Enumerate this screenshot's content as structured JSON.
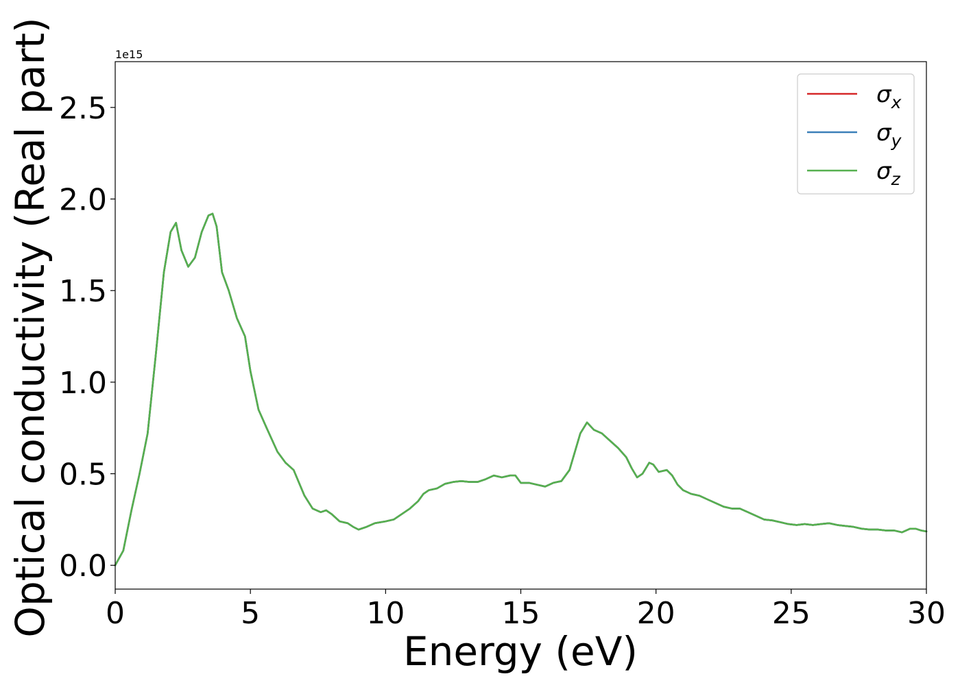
{
  "chart_data": {
    "type": "line",
    "title": "",
    "xlabel": "Energy (eV)",
    "ylabel": "Optical conductivity (Real part)",
    "y_offset_label": "1e15",
    "xlim": [
      0,
      30
    ],
    "ylim": [
      -0.13,
      2.75
    ],
    "xticks": [
      0,
      5,
      10,
      15,
      20,
      25,
      30
    ],
    "yticks": [
      0.0,
      0.5,
      1.0,
      1.5,
      2.0,
      2.5
    ],
    "xtick_labels": [
      "0",
      "5",
      "10",
      "15",
      "20",
      "25",
      "30"
    ],
    "ytick_labels": [
      "0.0",
      "0.5",
      "1.0",
      "1.5",
      "2.0",
      "2.5"
    ],
    "grid": false,
    "legend_position": "top-right",
    "legend": [
      {
        "symbol": "σ",
        "sub": "x",
        "color": "#d62728"
      },
      {
        "symbol": "σ",
        "sub": "y",
        "color": "#3a7fb8"
      },
      {
        "symbol": "σ",
        "sub": "z",
        "color": "#56b04f"
      }
    ],
    "x": [
      0,
      0.3,
      0.6,
      0.9,
      1.2,
      1.5,
      1.8,
      2.05,
      2.25,
      2.45,
      2.7,
      2.95,
      3.2,
      3.45,
      3.6,
      3.75,
      3.95,
      4.2,
      4.5,
      4.8,
      5.0,
      5.3,
      5.6,
      6.0,
      6.3,
      6.6,
      6.8,
      7.0,
      7.3,
      7.6,
      7.8,
      8.0,
      8.3,
      8.6,
      8.8,
      9.0,
      9.3,
      9.6,
      10.0,
      10.3,
      10.6,
      10.9,
      11.2,
      11.4,
      11.6,
      11.9,
      12.2,
      12.5,
      12.8,
      13.1,
      13.4,
      13.7,
      14.0,
      14.3,
      14.6,
      14.8,
      15.0,
      15.3,
      15.6,
      15.9,
      16.2,
      16.5,
      16.8,
      17.0,
      17.2,
      17.45,
      17.7,
      18.0,
      18.3,
      18.6,
      18.9,
      19.1,
      19.3,
      19.5,
      19.75,
      19.9,
      20.1,
      20.4,
      20.6,
      20.8,
      21.0,
      21.3,
      21.6,
      21.9,
      22.2,
      22.5,
      22.8,
      23.1,
      23.4,
      23.7,
      24.0,
      24.3,
      24.6,
      24.9,
      25.2,
      25.5,
      25.8,
      26.1,
      26.4,
      26.7,
      27.0,
      27.3,
      27.6,
      27.9,
      28.2,
      28.5,
      28.8,
      29.1,
      29.4,
      29.6,
      29.8,
      30.0
    ],
    "series": [
      {
        "name": "σx",
        "color": "#d62728",
        "values": [
          0.0,
          0.08,
          0.3,
          0.5,
          0.72,
          1.15,
          1.6,
          1.82,
          1.87,
          1.72,
          1.63,
          1.68,
          1.82,
          1.91,
          1.92,
          1.85,
          1.6,
          1.5,
          1.35,
          1.25,
          1.06,
          0.85,
          0.75,
          0.62,
          0.56,
          0.52,
          0.45,
          0.38,
          0.31,
          0.29,
          0.3,
          0.28,
          0.24,
          0.23,
          0.21,
          0.195,
          0.21,
          0.23,
          0.24,
          0.25,
          0.28,
          0.31,
          0.35,
          0.39,
          0.41,
          0.42,
          0.445,
          0.455,
          0.46,
          0.455,
          0.455,
          0.47,
          0.49,
          0.48,
          0.49,
          0.49,
          0.45,
          0.45,
          0.44,
          0.43,
          0.45,
          0.46,
          0.52,
          0.62,
          0.72,
          0.78,
          0.74,
          0.72,
          0.68,
          0.64,
          0.59,
          0.53,
          0.48,
          0.5,
          0.56,
          0.55,
          0.51,
          0.52,
          0.49,
          0.44,
          0.41,
          0.39,
          0.38,
          0.36,
          0.34,
          0.32,
          0.31,
          0.31,
          0.29,
          0.27,
          0.25,
          0.245,
          0.235,
          0.225,
          0.22,
          0.225,
          0.22,
          0.225,
          0.23,
          0.22,
          0.215,
          0.21,
          0.2,
          0.195,
          0.195,
          0.19,
          0.19,
          0.18,
          0.2,
          0.2,
          0.19,
          0.185
        ]
      },
      {
        "name": "σy",
        "color": "#3a7fb8",
        "values": [
          0.0,
          0.08,
          0.3,
          0.5,
          0.72,
          1.15,
          1.6,
          1.82,
          1.87,
          1.72,
          1.63,
          1.68,
          1.82,
          1.91,
          1.92,
          1.85,
          1.6,
          1.5,
          1.35,
          1.25,
          1.06,
          0.85,
          0.75,
          0.62,
          0.56,
          0.52,
          0.45,
          0.38,
          0.31,
          0.29,
          0.3,
          0.28,
          0.24,
          0.23,
          0.21,
          0.195,
          0.21,
          0.23,
          0.24,
          0.25,
          0.28,
          0.31,
          0.35,
          0.39,
          0.41,
          0.42,
          0.445,
          0.455,
          0.46,
          0.455,
          0.455,
          0.47,
          0.49,
          0.48,
          0.49,
          0.49,
          0.45,
          0.45,
          0.44,
          0.43,
          0.45,
          0.46,
          0.52,
          0.62,
          0.72,
          0.78,
          0.74,
          0.72,
          0.68,
          0.64,
          0.59,
          0.53,
          0.48,
          0.5,
          0.56,
          0.55,
          0.51,
          0.52,
          0.49,
          0.44,
          0.41,
          0.39,
          0.38,
          0.36,
          0.34,
          0.32,
          0.31,
          0.31,
          0.29,
          0.27,
          0.25,
          0.245,
          0.235,
          0.225,
          0.22,
          0.225,
          0.22,
          0.225,
          0.23,
          0.22,
          0.215,
          0.21,
          0.2,
          0.195,
          0.195,
          0.19,
          0.19,
          0.18,
          0.2,
          0.2,
          0.19,
          0.185
        ]
      },
      {
        "name": "σz",
        "color": "#56b04f",
        "values": [
          0.0,
          0.08,
          0.3,
          0.5,
          0.72,
          1.15,
          1.6,
          1.82,
          1.87,
          1.72,
          1.63,
          1.68,
          1.82,
          1.91,
          1.92,
          1.85,
          1.6,
          1.5,
          1.35,
          1.25,
          1.06,
          0.85,
          0.75,
          0.62,
          0.56,
          0.52,
          0.45,
          0.38,
          0.31,
          0.29,
          0.3,
          0.28,
          0.24,
          0.23,
          0.21,
          0.195,
          0.21,
          0.23,
          0.24,
          0.25,
          0.28,
          0.31,
          0.35,
          0.39,
          0.41,
          0.42,
          0.445,
          0.455,
          0.46,
          0.455,
          0.455,
          0.47,
          0.49,
          0.48,
          0.49,
          0.49,
          0.45,
          0.45,
          0.44,
          0.43,
          0.45,
          0.46,
          0.52,
          0.62,
          0.72,
          0.78,
          0.74,
          0.72,
          0.68,
          0.64,
          0.59,
          0.53,
          0.48,
          0.5,
          0.56,
          0.55,
          0.51,
          0.52,
          0.49,
          0.44,
          0.41,
          0.39,
          0.38,
          0.36,
          0.34,
          0.32,
          0.31,
          0.31,
          0.29,
          0.27,
          0.25,
          0.245,
          0.235,
          0.225,
          0.22,
          0.225,
          0.22,
          0.225,
          0.23,
          0.22,
          0.215,
          0.21,
          0.2,
          0.195,
          0.195,
          0.19,
          0.19,
          0.18,
          0.2,
          0.2,
          0.19,
          0.185
        ]
      }
    ]
  }
}
